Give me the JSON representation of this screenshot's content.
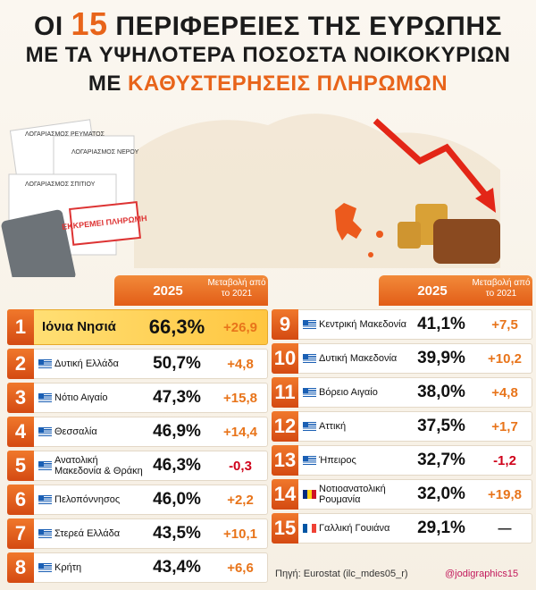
{
  "header": {
    "title": [
      {
        "parts": [
          "ΟΙ ",
          "15",
          " ΠΕΡΙΦΕΡΕΙΕΣ ΤΗΣ ΕΥΡΩΠΗΣ"
        ]
      },
      {
        "parts": [
          "ΜΕ ΤΑ ΥΨΗΛΟΤΕΡΑ ΠΟΣΟΣΤΑ ΝΟΙΚΟΚΥΡΙΩΝ"
        ]
      },
      {
        "parts": [
          "ΜΕ ",
          "ΚΑΘΥΣΤΕΡΗΣΕΙΣ ΠΛΗΡΩΜΩΝ"
        ]
      }
    ]
  },
  "illustration": {
    "bill_power": "ΛΟΓΑΡΙΑΣΜΟΣ ΡΕΥΜΑΤΟΣ",
    "bill_water": "ΛΟΓΑΡΙΑΣΜΟΣ ΝΕΡΟΥ",
    "bill_house": "ΛΟΓΑΡΙΑΣΜΟΣ ΣΠΙΤΙΟΥ",
    "stamp": "ΕΚΚΡΕΜΕΙ ΠΛΗΡΩΜΗ"
  },
  "tables": [
    {
      "header": {
        "year": "2025",
        "change": "Μεταβολή από το 2021"
      },
      "rows": [
        {
          "rank": "1",
          "flag": "gr",
          "name": "Ιόνια Νησιά",
          "value": "66,3%",
          "change": "+26,9",
          "highlight": true
        },
        {
          "rank": "2",
          "flag": "gr",
          "name": "Δυτική Ελλάδα",
          "value": "50,7%",
          "change": "+4,8"
        },
        {
          "rank": "3",
          "flag": "gr",
          "name": "Νότιο Αιγαίο",
          "value": "47,3%",
          "change": "+15,8"
        },
        {
          "rank": "4",
          "flag": "gr",
          "name": "Θεσσαλία",
          "value": "46,9%",
          "change": "+14,4"
        },
        {
          "rank": "5",
          "flag": "gr",
          "name": "Ανατολική Μακεδονία & Θράκη",
          "value": "46,3%",
          "change": "-0,3"
        },
        {
          "rank": "6",
          "flag": "gr",
          "name": "Πελοπόννησος",
          "value": "46,0%",
          "change": "+2,2"
        },
        {
          "rank": "7",
          "flag": "gr",
          "name": "Στερεά Ελλάδα",
          "value": "43,5%",
          "change": "+10,1"
        },
        {
          "rank": "8",
          "flag": "gr",
          "name": "Κρήτη",
          "value": "43,4%",
          "change": "+6,6"
        }
      ]
    },
    {
      "header": {
        "year": "2025",
        "change": "Μεταβολή από το 2021"
      },
      "rows": [
        {
          "rank": "9",
          "flag": "gr",
          "name": "Κεντρική Μακεδονία",
          "value": "41,1%",
          "change": "+7,5"
        },
        {
          "rank": "10",
          "flag": "gr",
          "name": "Δυτική Μακεδονία",
          "value": "39,9%",
          "change": "+10,2"
        },
        {
          "rank": "11",
          "flag": "gr",
          "name": "Βόρειο Αιγαίο",
          "value": "38,0%",
          "change": "+4,8"
        },
        {
          "rank": "12",
          "flag": "gr",
          "name": "Αττική",
          "value": "37,5%",
          "change": "+1,7"
        },
        {
          "rank": "13",
          "flag": "gr",
          "name": "Ήπειρος",
          "value": "32,7%",
          "change": "-1,2"
        },
        {
          "rank": "14",
          "flag": "ro",
          "name": "Νοτιοανατολική Ρουμανία",
          "value": "32,0%",
          "change": "+19,8"
        },
        {
          "rank": "15",
          "flag": "fr",
          "name": "Γαλλική Γουιάνα",
          "value": "29,1%",
          "change": "—"
        }
      ]
    }
  ],
  "footer": {
    "source": "Πηγή: Eurostat (ilc_mdes05_r)",
    "credit": "@jodigraphics15"
  }
}
